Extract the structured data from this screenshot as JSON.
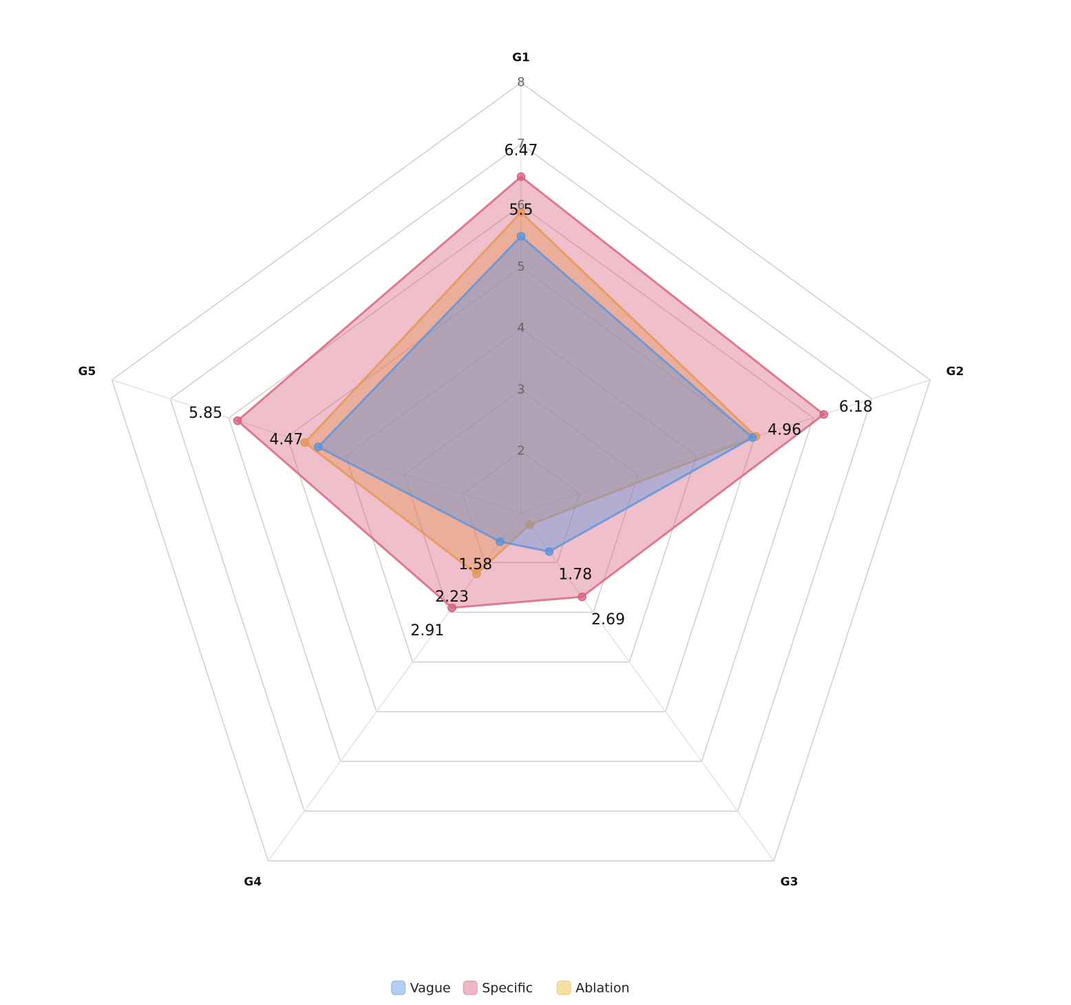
{
  "chart_data": {
    "type": "radar",
    "categories": [
      "G1",
      "G2",
      "G3",
      "G4",
      "G5"
    ],
    "rlim": [
      1,
      8
    ],
    "rticks": [
      2,
      3,
      4,
      5,
      6,
      7,
      8
    ],
    "rings": [
      1,
      2,
      3,
      4,
      5,
      6,
      7,
      8
    ],
    "series": [
      {
        "name": "Vague",
        "color": "#5b93dc",
        "values": [
          5.5,
          4.96,
          1.78,
          1.58,
          4.47
        ],
        "value_labels": [
          "5.5",
          "4.96",
          "1.78",
          "1.58",
          "4.47"
        ]
      },
      {
        "name": "Specific",
        "color": "#d8607c",
        "values": [
          6.47,
          6.18,
          2.69,
          2.91,
          5.85
        ],
        "value_labels": [
          "6.47",
          "6.18",
          "2.69",
          "2.91",
          "5.85"
        ]
      },
      {
        "name": "Ablation",
        "color": "#f0b93a",
        "values": [
          5.89,
          5.02,
          1.24,
          2.23,
          4.7
        ],
        "value_labels": [
          null,
          null,
          null,
          "2.23",
          null
        ]
      }
    ]
  }
}
